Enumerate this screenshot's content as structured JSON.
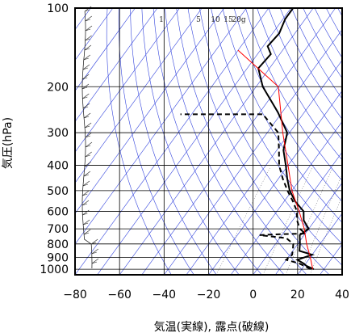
{
  "chart_data": {
    "type": "line",
    "title": "",
    "xlabel": "気温(実線), 露点(破線)",
    "ylabel": "気圧(hPa)",
    "x_ticks": [
      -80,
      -60,
      -40,
      -20,
      0,
      20,
      40
    ],
    "y_ticks": [
      100,
      200,
      300,
      400,
      500,
      600,
      700,
      800,
      900,
      1000
    ],
    "xlim": [
      -80,
      40
    ],
    "ylim": [
      1050,
      100
    ],
    "y_scale": "log",
    "grid": true,
    "mixing_ratio_labels": [
      "1",
      "5",
      "10",
      "15",
      "20g"
    ],
    "mixing_ratio_values": [
      1,
      5,
      10,
      15,
      20
    ],
    "series": [
      {
        "role": "temperature",
        "color": "#000000",
        "style": "solid",
        "points": [
          [
            25.5,
            1000
          ],
          [
            21,
            970
          ],
          [
            19,
            950
          ],
          [
            15,
            920
          ],
          [
            20,
            880
          ],
          [
            13,
            850
          ],
          [
            11,
            800
          ],
          [
            8,
            740
          ],
          [
            10,
            700
          ],
          [
            5,
            650
          ],
          [
            2,
            600
          ],
          [
            -5,
            550
          ],
          [
            -11,
            500
          ],
          [
            -16,
            450
          ],
          [
            -21,
            400
          ],
          [
            -27,
            350
          ],
          [
            -31,
            300
          ],
          [
            -42,
            250
          ],
          [
            -57,
            200
          ],
          [
            -65,
            170
          ],
          [
            -64,
            150
          ],
          [
            -68,
            140
          ],
          [
            -67,
            125
          ],
          [
            -69,
            110
          ],
          [
            -69,
            100
          ]
        ]
      },
      {
        "role": "dewpoint",
        "color": "#000000",
        "style": "dashed",
        "points": [
          [
            24,
            1000
          ],
          [
            20,
            970
          ],
          [
            17,
            950
          ],
          [
            10,
            920
          ],
          [
            11,
            880
          ],
          [
            10,
            850
          ],
          [
            8,
            800
          ],
          [
            3,
            760
          ],
          [
            -10,
            740
          ],
          [
            -3,
            735
          ],
          [
            10,
            730
          ],
          [
            6,
            700
          ],
          [
            2,
            650
          ],
          [
            -1,
            600
          ],
          [
            -6,
            550
          ],
          [
            -12,
            500
          ],
          [
            -18,
            450
          ],
          [
            -24,
            400
          ],
          [
            -29,
            350
          ],
          [
            -35,
            300
          ],
          [
            -48,
            255
          ],
          [
            -85,
            255
          ]
        ]
      },
      {
        "role": "parcel",
        "color": "#ff0000",
        "style": "solid",
        "points": [
          [
            25,
            1000
          ],
          [
            20,
            900
          ],
          [
            14,
            800
          ],
          [
            8,
            700
          ],
          [
            0,
            600
          ],
          [
            -10,
            500
          ],
          [
            -20,
            400
          ],
          [
            -33,
            300
          ],
          [
            -50,
            200
          ],
          [
            -80,
            145
          ]
        ]
      }
    ]
  }
}
